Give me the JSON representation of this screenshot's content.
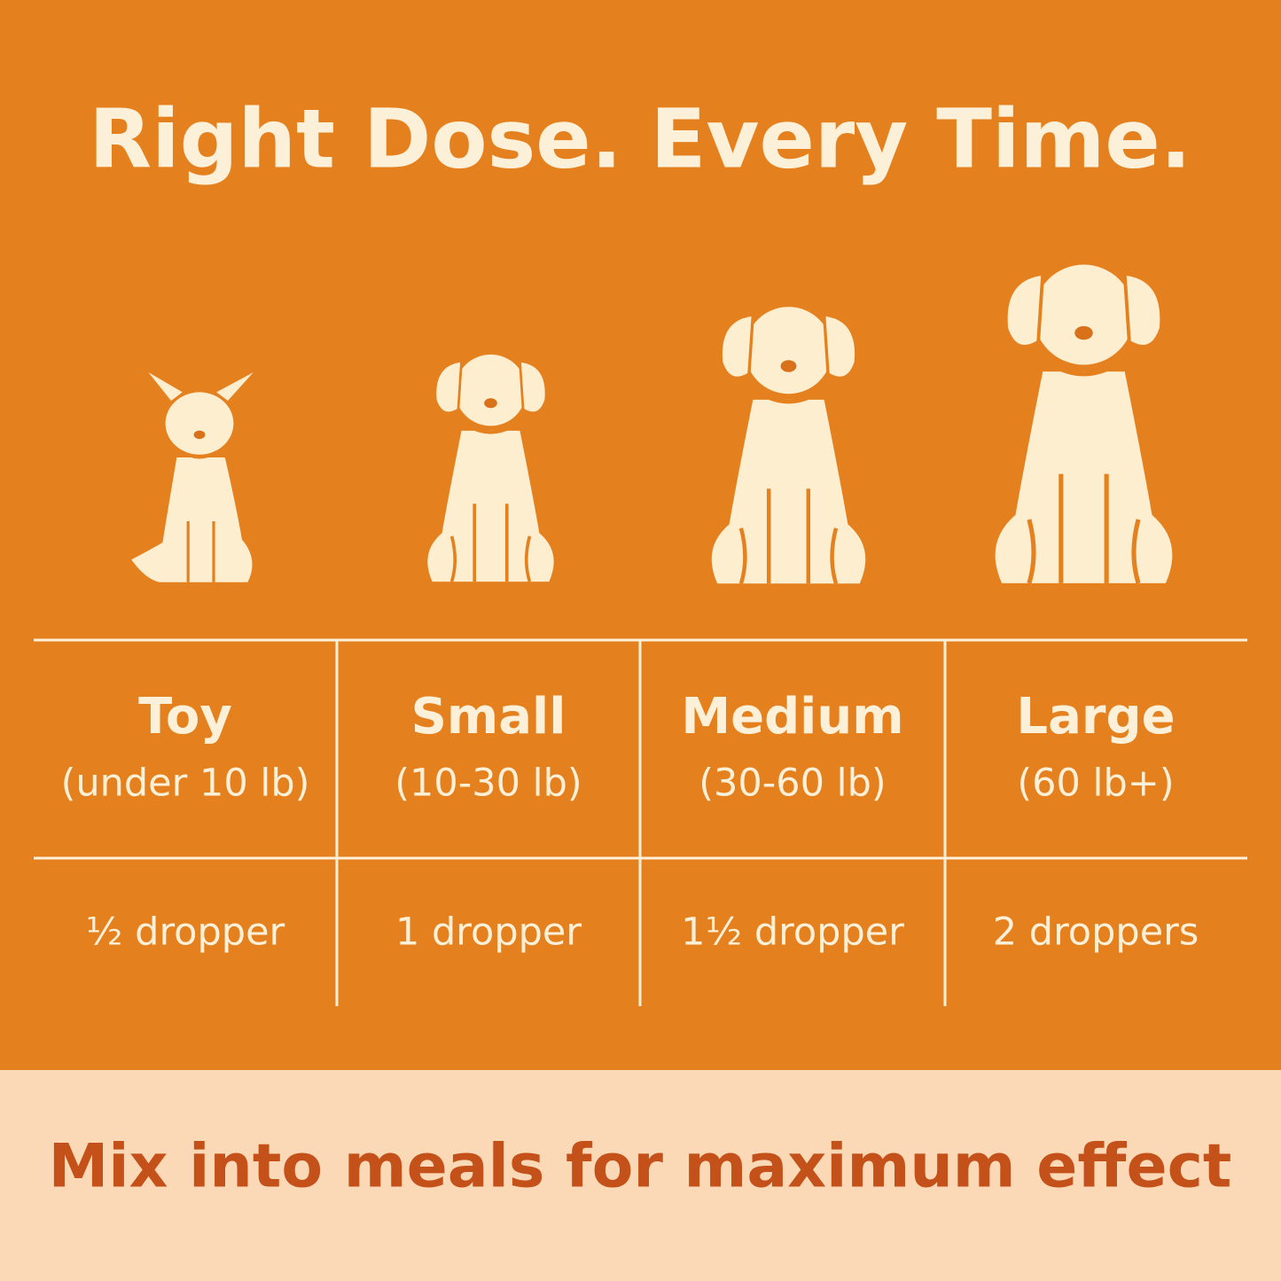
{
  "header": {
    "title": "Right Dose. Every Time."
  },
  "table": {
    "columns": [
      {
        "size": "Toy",
        "range": "(under 10 lb)",
        "dose": "½ dropper"
      },
      {
        "size": "Small",
        "range": "(10-30 lb)",
        "dose": "1 dropper"
      },
      {
        "size": "Medium",
        "range": "(30-60 lb)",
        "dose": "1½ dropper"
      },
      {
        "size": "Large",
        "range": "(60 lb+)",
        "dose": "2 droppers"
      }
    ]
  },
  "footer": {
    "text": "Mix into meals for maximum effect"
  }
}
